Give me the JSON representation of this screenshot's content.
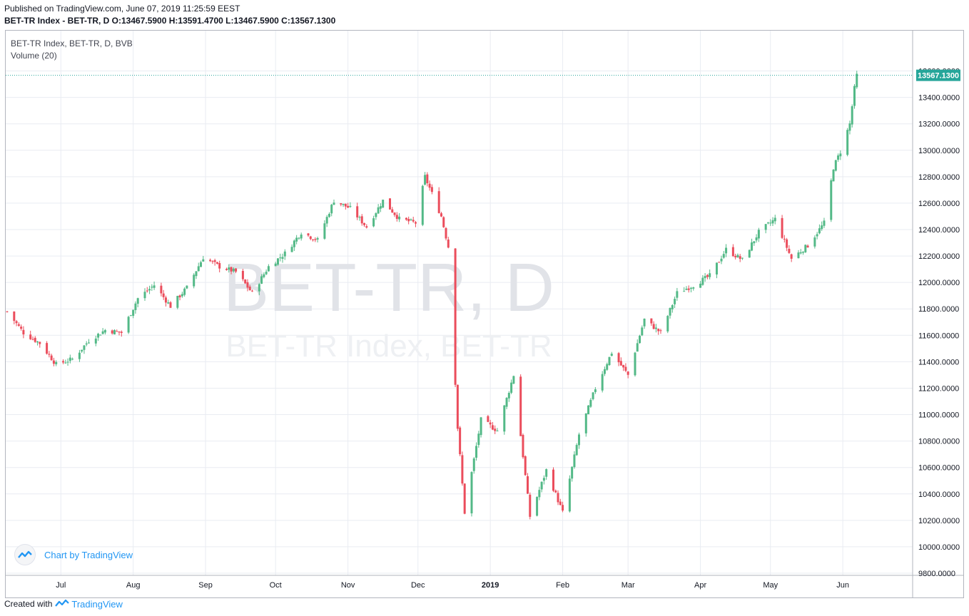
{
  "header": {
    "published": "Published on TradingView.com, June 07, 2019 11:25:59 EEST",
    "ohlc_line": "BET-TR Index - BET-TR, D  O:13467.5900  H:13591.4700  L:13467.5900  C:13567.1300"
  },
  "legend": {
    "symbol": "BET-TR Index, BET-TR, D, BVB",
    "volume": "Volume (20)"
  },
  "watermark": {
    "big": "BET-TR, D",
    "small": "BET-TR Index, BET-TR"
  },
  "badge": {
    "label": "Chart by TradingView"
  },
  "footer": {
    "created_with": "Created with",
    "brand": "TradingView"
  },
  "colors": {
    "up": "#53b987",
    "down": "#eb4d5c",
    "grid": "#e9ecf2",
    "price_line": "#26a69a",
    "axis_text": "#131722"
  },
  "chart_data": {
    "type": "candlestick",
    "title": "BET-TR Index, BET-TR, D, BVB",
    "ylim": [
      9800,
      13700
    ],
    "y_ticks": [
      9800,
      10000,
      10200,
      10400,
      10600,
      10800,
      11000,
      11200,
      11400,
      11600,
      11800,
      12000,
      12200,
      12400,
      12600,
      12800,
      13000,
      13200,
      13400,
      13600
    ],
    "y_tick_labels": [
      "9800.0000",
      "10000.0000",
      "10200.0000",
      "10400.0000",
      "10600.0000",
      "10800.0000",
      "11000.0000",
      "11200.0000",
      "11400.0000",
      "11600.0000",
      "11800.0000",
      "12000.0000",
      "12200.0000",
      "12400.0000",
      "12600.0000",
      "12800.0000",
      "13000.0000",
      "13200.0000",
      "13400.0000",
      "13600.0000"
    ],
    "x_range": [
      "2018-06-08",
      "2019-06-30"
    ],
    "x_ticks": [
      {
        "label": "Jul",
        "date": "2018-07-01",
        "bold": false
      },
      {
        "label": "Aug",
        "date": "2018-08-01",
        "bold": false
      },
      {
        "label": "Sep",
        "date": "2018-09-01",
        "bold": false
      },
      {
        "label": "Oct",
        "date": "2018-10-01",
        "bold": false
      },
      {
        "label": "Nov",
        "date": "2018-11-01",
        "bold": false
      },
      {
        "label": "Dec",
        "date": "2018-12-01",
        "bold": false
      },
      {
        "label": "2019",
        "date": "2019-01-01",
        "bold": true
      },
      {
        "label": "Feb",
        "date": "2019-02-01",
        "bold": false
      },
      {
        "label": "Mar",
        "date": "2019-03-01",
        "bold": false
      },
      {
        "label": "Apr",
        "date": "2019-04-01",
        "bold": false
      },
      {
        "label": "May",
        "date": "2019-05-01",
        "bold": false
      },
      {
        "label": "Jun",
        "date": "2019-06-01",
        "bold": false
      }
    ],
    "last_price": 13567.13,
    "last_price_label": "13567.1300",
    "grid": true,
    "series": [
      {
        "name": "BET-TR",
        "close": [
          {
            "date": "2018-06-08",
            "value": 11780
          },
          {
            "date": "2018-06-15",
            "value": 11620
          },
          {
            "date": "2018-06-22",
            "value": 11540
          },
          {
            "date": "2018-06-29",
            "value": 11380
          },
          {
            "date": "2018-07-06",
            "value": 11420
          },
          {
            "date": "2018-07-13",
            "value": 11560
          },
          {
            "date": "2018-07-20",
            "value": 11640
          },
          {
            "date": "2018-07-27",
            "value": 11620
          },
          {
            "date": "2018-08-03",
            "value": 11880
          },
          {
            "date": "2018-08-10",
            "value": 11980
          },
          {
            "date": "2018-08-17",
            "value": 11820
          },
          {
            "date": "2018-08-24",
            "value": 11960
          },
          {
            "date": "2018-08-31",
            "value": 12190
          },
          {
            "date": "2018-09-07",
            "value": 12120
          },
          {
            "date": "2018-09-14",
            "value": 12080
          },
          {
            "date": "2018-09-21",
            "value": 11920
          },
          {
            "date": "2018-09-28",
            "value": 12120
          },
          {
            "date": "2018-10-05",
            "value": 12220
          },
          {
            "date": "2018-10-12",
            "value": 12380
          },
          {
            "date": "2018-10-19",
            "value": 12320
          },
          {
            "date": "2018-10-26",
            "value": 12620
          },
          {
            "date": "2018-11-02",
            "value": 12560
          },
          {
            "date": "2018-11-09",
            "value": 12420
          },
          {
            "date": "2018-11-16",
            "value": 12620
          },
          {
            "date": "2018-11-23",
            "value": 12480
          },
          {
            "date": "2018-11-30",
            "value": 12450
          },
          {
            "date": "2018-12-04",
            "value": 12800
          },
          {
            "date": "2018-12-11",
            "value": 12500
          },
          {
            "date": "2018-12-14",
            "value": 12270
          },
          {
            "date": "2018-12-18",
            "value": 10900
          },
          {
            "date": "2018-12-21",
            "value": 10260
          },
          {
            "date": "2018-12-28",
            "value": 10960
          },
          {
            "date": "2019-01-04",
            "value": 10880
          },
          {
            "date": "2019-01-11",
            "value": 11300
          },
          {
            "date": "2019-01-18",
            "value": 10230
          },
          {
            "date": "2019-01-25",
            "value": 10580
          },
          {
            "date": "2019-02-01",
            "value": 10260
          },
          {
            "date": "2019-02-08",
            "value": 10850
          },
          {
            "date": "2019-02-15",
            "value": 11200
          },
          {
            "date": "2019-02-22",
            "value": 11470
          },
          {
            "date": "2019-03-01",
            "value": 11300
          },
          {
            "date": "2019-03-08",
            "value": 11720
          },
          {
            "date": "2019-03-15",
            "value": 11620
          },
          {
            "date": "2019-03-22",
            "value": 11920
          },
          {
            "date": "2019-03-29",
            "value": 11980
          },
          {
            "date": "2019-04-05",
            "value": 12050
          },
          {
            "date": "2019-04-12",
            "value": 12250
          },
          {
            "date": "2019-04-19",
            "value": 12170
          },
          {
            "date": "2019-04-26",
            "value": 12380
          },
          {
            "date": "2019-05-03",
            "value": 12480
          },
          {
            "date": "2019-05-10",
            "value": 12180
          },
          {
            "date": "2019-05-17",
            "value": 12280
          },
          {
            "date": "2019-05-24",
            "value": 12450
          },
          {
            "date": "2019-05-28",
            "value": 12870
          },
          {
            "date": "2019-05-31",
            "value": 12990
          },
          {
            "date": "2019-06-04",
            "value": 13200
          },
          {
            "date": "2019-06-06",
            "value": 13467.59
          },
          {
            "date": "2019-06-07",
            "value": 13567.13
          }
        ]
      }
    ]
  }
}
